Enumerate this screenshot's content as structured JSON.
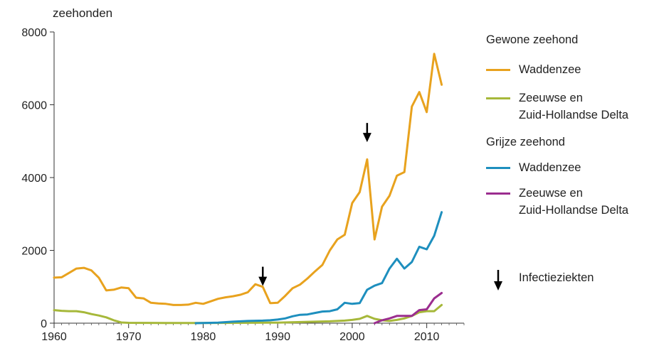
{
  "chart_data": {
    "type": "line",
    "ylabel": "zeehonden",
    "xlabel": "",
    "xlim": [
      1960,
      2015
    ],
    "ylim": [
      0,
      8000
    ],
    "x_ticks": [
      1960,
      1970,
      1980,
      1990,
      2000,
      2010
    ],
    "y_ticks": [
      0,
      2000,
      4000,
      6000,
      8000
    ],
    "legend_groups": [
      {
        "title": "Gewone zeehond",
        "series_ids": [
          "gz-wadden",
          "gz-delta"
        ]
      },
      {
        "title": "Grijze zeehond",
        "series_ids": [
          "gr-wadden",
          "gr-delta"
        ]
      }
    ],
    "series": [
      {
        "id": "gz-wadden",
        "name": "Waddenzee",
        "color": "#E8A21E",
        "points": [
          [
            1960,
            1250
          ],
          [
            1961,
            1260
          ],
          [
            1962,
            1380
          ],
          [
            1963,
            1500
          ],
          [
            1964,
            1520
          ],
          [
            1965,
            1450
          ],
          [
            1966,
            1250
          ],
          [
            1967,
            900
          ],
          [
            1968,
            920
          ],
          [
            1969,
            980
          ],
          [
            1970,
            960
          ],
          [
            1971,
            700
          ],
          [
            1972,
            680
          ],
          [
            1973,
            560
          ],
          [
            1974,
            540
          ],
          [
            1975,
            530
          ],
          [
            1976,
            500
          ],
          [
            1977,
            500
          ],
          [
            1978,
            510
          ],
          [
            1979,
            560
          ],
          [
            1980,
            530
          ],
          [
            1981,
            600
          ],
          [
            1982,
            670
          ],
          [
            1983,
            710
          ],
          [
            1984,
            740
          ],
          [
            1985,
            780
          ],
          [
            1986,
            850
          ],
          [
            1987,
            1070
          ],
          [
            1988,
            1000
          ],
          [
            1989,
            550
          ],
          [
            1990,
            560
          ],
          [
            1991,
            750
          ],
          [
            1992,
            960
          ],
          [
            1993,
            1060
          ],
          [
            1994,
            1230
          ],
          [
            1995,
            1420
          ],
          [
            1996,
            1600
          ],
          [
            1997,
            2000
          ],
          [
            1998,
            2300
          ],
          [
            1999,
            2430
          ],
          [
            2000,
            3300
          ],
          [
            2001,
            3600
          ],
          [
            2002,
            4500
          ],
          [
            2003,
            2300
          ],
          [
            2004,
            3200
          ],
          [
            2005,
            3500
          ],
          [
            2006,
            4050
          ],
          [
            2007,
            4150
          ],
          [
            2008,
            5950
          ],
          [
            2009,
            6350
          ],
          [
            2010,
            5800
          ],
          [
            2011,
            7400
          ],
          [
            2012,
            6550
          ]
        ]
      },
      {
        "id": "gz-delta",
        "name": "Zeeuwse en\nZuid-Hollandse Delta",
        "color": "#A6B83A",
        "points": [
          [
            1960,
            360
          ],
          [
            1961,
            340
          ],
          [
            1962,
            330
          ],
          [
            1963,
            330
          ],
          [
            1964,
            300
          ],
          [
            1965,
            250
          ],
          [
            1966,
            210
          ],
          [
            1967,
            160
          ],
          [
            1968,
            80
          ],
          [
            1969,
            20
          ],
          [
            1970,
            10
          ],
          [
            1975,
            5
          ],
          [
            1980,
            5
          ],
          [
            1985,
            10
          ],
          [
            1990,
            15
          ],
          [
            1995,
            40
          ],
          [
            1997,
            50
          ],
          [
            1998,
            60
          ],
          [
            1999,
            70
          ],
          [
            2000,
            90
          ],
          [
            2001,
            120
          ],
          [
            2002,
            200
          ],
          [
            2003,
            120
          ],
          [
            2004,
            80
          ],
          [
            2005,
            60
          ],
          [
            2006,
            90
          ],
          [
            2007,
            130
          ],
          [
            2008,
            200
          ],
          [
            2009,
            300
          ],
          [
            2010,
            330
          ],
          [
            2011,
            330
          ],
          [
            2012,
            500
          ]
        ]
      },
      {
        "id": "gr-wadden",
        "name": "Waddenzee",
        "color": "#1E8FBE",
        "points": [
          [
            1979,
            0
          ],
          [
            1980,
            5
          ],
          [
            1982,
            15
          ],
          [
            1984,
            40
          ],
          [
            1986,
            60
          ],
          [
            1988,
            70
          ],
          [
            1989,
            80
          ],
          [
            1990,
            100
          ],
          [
            1991,
            130
          ],
          [
            1992,
            190
          ],
          [
            1993,
            230
          ],
          [
            1994,
            240
          ],
          [
            1995,
            280
          ],
          [
            1996,
            320
          ],
          [
            1997,
            330
          ],
          [
            1998,
            380
          ],
          [
            1999,
            560
          ],
          [
            2000,
            530
          ],
          [
            2001,
            550
          ],
          [
            2002,
            920
          ],
          [
            2003,
            1030
          ],
          [
            2004,
            1100
          ],
          [
            2005,
            1500
          ],
          [
            2006,
            1770
          ],
          [
            2007,
            1500
          ],
          [
            2008,
            1680
          ],
          [
            2009,
            2100
          ],
          [
            2010,
            2030
          ],
          [
            2011,
            2400
          ],
          [
            2012,
            3050
          ]
        ]
      },
      {
        "id": "gr-delta",
        "name": "Zeeuwse en\nZuid-Hollandse Delta",
        "color": "#9B2D8F",
        "points": [
          [
            2003,
            0
          ],
          [
            2004,
            80
          ],
          [
            2005,
            130
          ],
          [
            2006,
            200
          ],
          [
            2007,
            200
          ],
          [
            2008,
            200
          ],
          [
            2009,
            360
          ],
          [
            2010,
            380
          ],
          [
            2011,
            680
          ],
          [
            2012,
            830
          ]
        ]
      }
    ],
    "annotations": [
      {
        "x": 1988,
        "y": 1550,
        "symbol": "arrow-down"
      },
      {
        "x": 2002,
        "y": 5500,
        "symbol": "arrow-down"
      }
    ],
    "infection_label": "Infectieziekten"
  }
}
